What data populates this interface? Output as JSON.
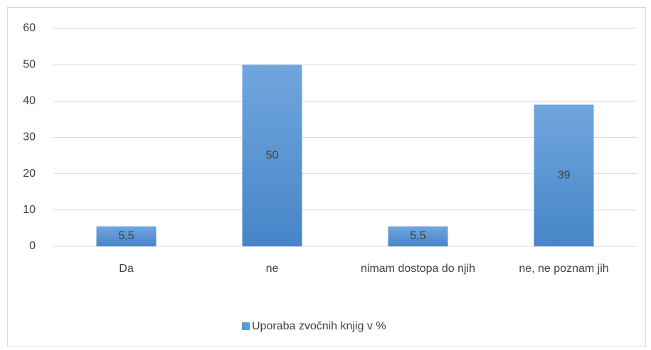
{
  "chart_data": {
    "type": "bar",
    "categories": [
      "Da",
      "ne",
      "nimam dostopa do njih",
      "ne, ne poznam jih"
    ],
    "series": [
      {
        "name": "Uporaba zvočnih knjig v %",
        "color": "#5b9bd5",
        "values": [
          5.5,
          50,
          5.5,
          39
        ],
        "value_labels": [
          "5,5",
          "50",
          "5,5",
          "39"
        ]
      }
    ],
    "ylim": [
      0,
      60
    ],
    "yticks": [
      0,
      10,
      20,
      30,
      40,
      50,
      60
    ],
    "grid": true,
    "legend": "bottom"
  }
}
